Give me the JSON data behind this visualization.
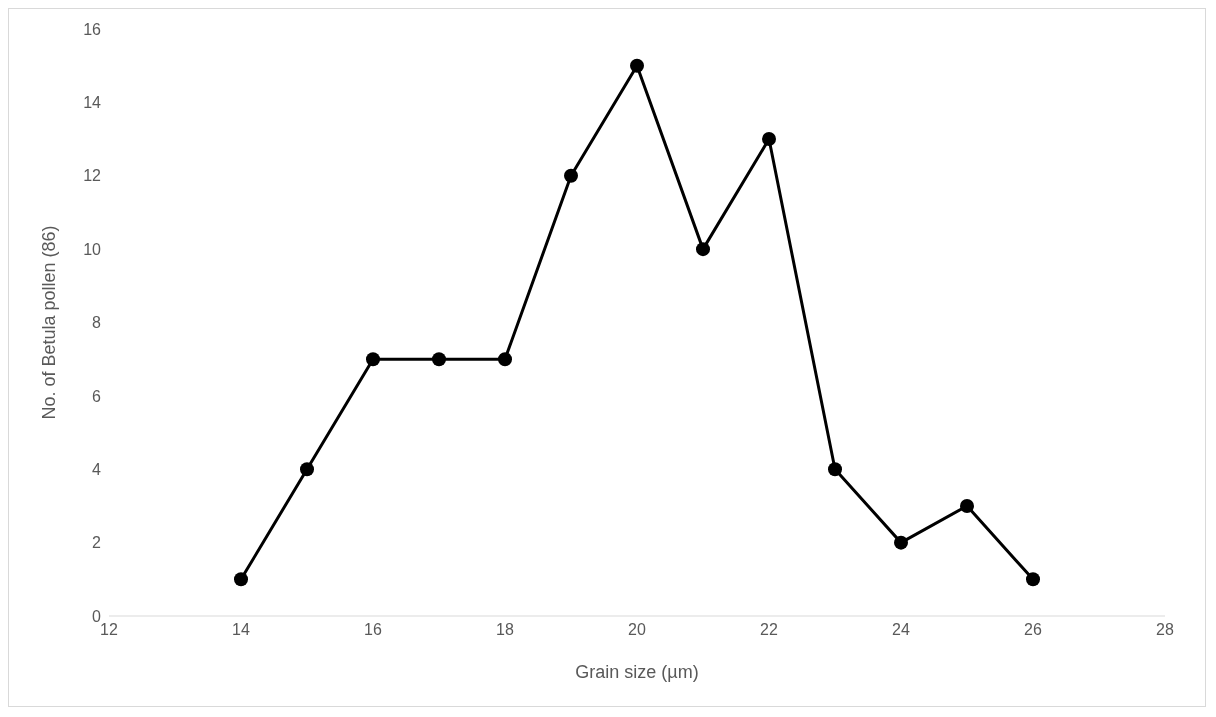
{
  "chart_data": {
    "type": "line",
    "xlabel": "Grain size (µm)",
    "ylabel": "No. of Betula pollen (86)",
    "x": [
      14,
      15,
      16,
      17,
      18,
      19,
      20,
      21,
      22,
      23,
      24,
      25,
      26
    ],
    "series": [
      {
        "color": "#000000",
        "values": [
          1,
          4,
          7,
          7,
          7,
          12,
          15,
          10,
          13,
          4,
          2,
          3,
          1
        ]
      }
    ],
    "xlim": [
      12,
      28
    ],
    "xticks": [
      12,
      14,
      16,
      18,
      20,
      22,
      24,
      26,
      28
    ],
    "ylim": [
      0,
      16
    ],
    "yticks": [
      0,
      2,
      4,
      6,
      8,
      10,
      12,
      14,
      16
    ],
    "grid": false,
    "legend": false,
    "marker": "circle",
    "line_style": "solid"
  }
}
